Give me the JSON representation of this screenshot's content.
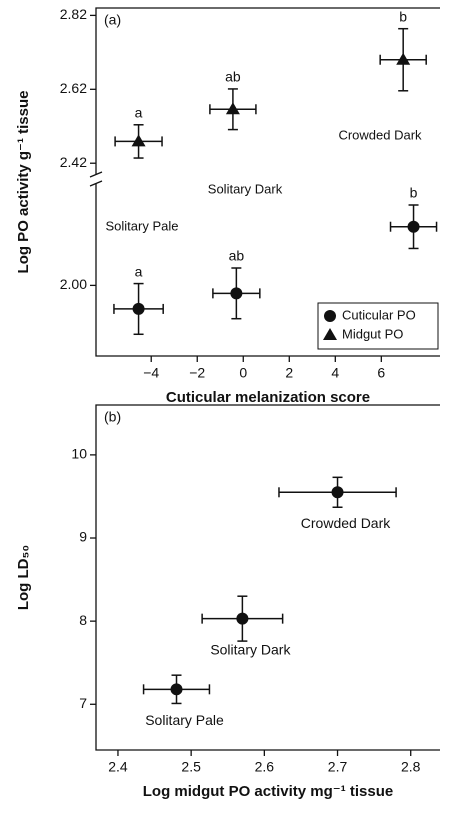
{
  "chart_data": [
    {
      "type": "scatter",
      "panel_label": "(a)",
      "x_label": "Cuticular melanization score",
      "y_label": "Log PO activity g⁻¹ tissue",
      "xlim": [
        -6.4,
        8.55
      ],
      "xticks": [
        {
          "value": -4,
          "label": "−4"
        },
        {
          "value": -2,
          "label": "−2"
        },
        0,
        2,
        4,
        6
      ],
      "ylim": [
        1.805,
        2.28
      ],
      "yticks": [
        {
          "value": 2,
          "label": "2.00"
        }
      ],
      "y2lim": [
        2.38,
        2.84
      ],
      "y2ticks": [
        2.42,
        2.62,
        2.82
      ],
      "axis_break": true,
      "legend": "bottom right",
      "series": [
        {
          "name": "Cuticular PO",
          "marker": "circle",
          "color": "#111111",
          "x": [
            -4.55,
            -0.3,
            7.4
          ],
          "values": [
            1.935,
            1.978,
            2.162
          ],
          "errors": [
            0.07,
            0.07,
            0.06
          ],
          "xerrors": [
            1.07,
            1.02,
            1.0
          ],
          "letters": [
            "a",
            "ab",
            "b"
          ]
        },
        {
          "name": "Midgut PO",
          "marker": "triangle",
          "color": "#111111",
          "axis": "y2",
          "x": [
            -4.55,
            -0.45,
            6.95
          ],
          "values": [
            2.479,
            2.566,
            2.7
          ],
          "errors": [
            0.045,
            0.055,
            0.084
          ],
          "xerrors": [
            1.02,
            1.0,
            1.0
          ],
          "letters": [
            "a",
            "ab",
            "b"
          ]
        }
      ],
      "annotations": [
        "Solitary Pale",
        "Solitary Dark",
        "Crowded Dark"
      ]
    },
    {
      "type": "scatter",
      "panel_label": "(b)",
      "x_label": "Log midgut PO activity mg⁻¹ tissue",
      "y_label": "Log LD₅₀",
      "xlim": [
        2.37,
        2.84
      ],
      "xticks": [
        2.4,
        2.5,
        2.6,
        2.7,
        2.8
      ],
      "ylim": [
        6.45,
        10.6
      ],
      "yticks": [
        7,
        8,
        9,
        10
      ],
      "series": [
        {
          "marker": "circle",
          "color": "#111111",
          "x": [
            2.48,
            2.57,
            2.7
          ],
          "values": [
            7.18,
            8.03,
            9.55
          ],
          "errors": [
            0.17,
            0.27,
            0.18
          ],
          "xerrors": [
            0.045,
            0.055,
            0.08
          ],
          "point_labels": [
            "Solitary Pale",
            "Solitary Dark",
            "Crowded Dark"
          ]
        }
      ]
    }
  ]
}
